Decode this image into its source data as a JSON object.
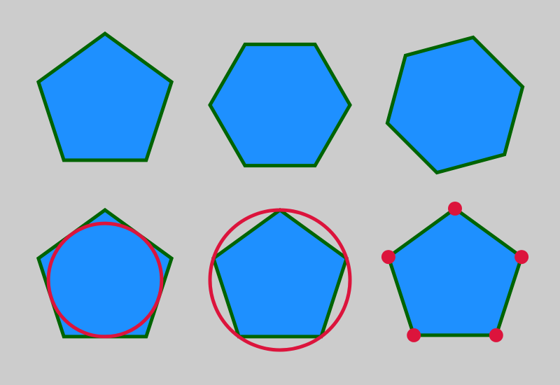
{
  "colors": {
    "background": "#cccccc",
    "shape_fill": "#1e90ff",
    "shape_stroke": "#006400",
    "highlight": "#dc143c"
  },
  "shapes": [
    {
      "name": "pentagon-regular",
      "sides": 5,
      "rotation_deg": 0
    },
    {
      "name": "hexagon-regular-flat",
      "sides": 6,
      "rotation_deg": 30
    },
    {
      "name": "hexagon-rotated",
      "sides": 6,
      "rotation_deg": 15
    },
    {
      "name": "pentagon-with-incircle",
      "sides": 5,
      "rotation_deg": 0,
      "overlay": "incircle"
    },
    {
      "name": "pentagon-with-circumcircle",
      "sides": 5,
      "rotation_deg": 0,
      "overlay": "circumcircle"
    },
    {
      "name": "pentagon-with-vertex-dots",
      "sides": 5,
      "rotation_deg": 0,
      "overlay": "vertex-dots"
    }
  ]
}
